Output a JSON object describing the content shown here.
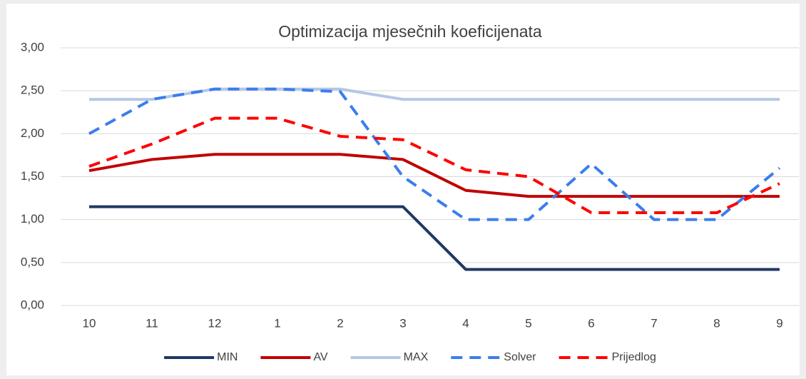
{
  "chart_data": {
    "type": "line",
    "title": "Optimizacija mjesečnih koeficijenata",
    "categories": [
      "10",
      "11",
      "12",
      "1",
      "2",
      "3",
      "4",
      "5",
      "6",
      "7",
      "8",
      "9"
    ],
    "series": [
      {
        "name": "MIN",
        "color": "#203864",
        "dashed": false,
        "values": [
          1.15,
          1.15,
          1.15,
          1.15,
          1.15,
          1.15,
          0.42,
          0.42,
          0.42,
          0.42,
          0.42,
          0.42
        ]
      },
      {
        "name": "AV",
        "color": "#c00000",
        "dashed": false,
        "values": [
          1.57,
          1.7,
          1.76,
          1.76,
          1.76,
          1.7,
          1.34,
          1.27,
          1.27,
          1.27,
          1.27,
          1.27
        ]
      },
      {
        "name": "MAX",
        "color": "#b4c7e7",
        "dashed": false,
        "values": [
          2.4,
          2.4,
          2.52,
          2.52,
          2.52,
          2.4,
          2.4,
          2.4,
          2.4,
          2.4,
          2.4,
          2.4
        ]
      },
      {
        "name": "Solver",
        "color": "#3c7ded",
        "dashed": true,
        "values": [
          2.0,
          2.4,
          2.52,
          2.52,
          2.49,
          1.5,
          1.0,
          1.0,
          1.65,
          1.0,
          1.0,
          1.6
        ]
      },
      {
        "name": "Prijedlog",
        "color": "#ff0000",
        "dashed": true,
        "values": [
          1.62,
          1.88,
          2.18,
          2.18,
          1.97,
          1.93,
          1.58,
          1.5,
          1.08,
          1.08,
          1.08,
          1.42
        ]
      }
    ],
    "ylim": [
      0,
      3
    ],
    "yticks": [
      {
        "value": 0,
        "label": "0,00"
      },
      {
        "value": 0.5,
        "label": "0,50"
      },
      {
        "value": 1,
        "label": "1,00"
      },
      {
        "value": 1.5,
        "label": "1,50"
      },
      {
        "value": 2,
        "label": "2,00"
      },
      {
        "value": 2.5,
        "label": "2,50"
      },
      {
        "value": 3,
        "label": "3,00"
      }
    ],
    "grid": true,
    "legend": "bottom"
  }
}
